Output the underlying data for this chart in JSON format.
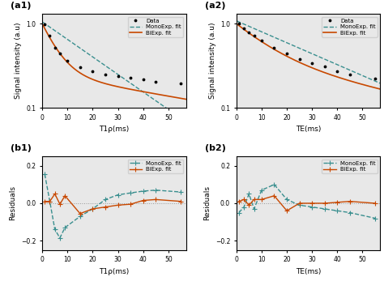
{
  "a1_xlabel": "T1ρ(ms)",
  "a1_ylabel": "Signal intensity (a.u)",
  "a1_data_x": [
    1,
    3,
    5,
    7,
    10,
    15,
    20,
    25,
    30,
    35,
    40,
    45,
    55
  ],
  "a1_data_y": [
    0.98,
    0.72,
    0.52,
    0.44,
    0.36,
    0.3,
    0.27,
    0.25,
    0.235,
    0.225,
    0.215,
    0.205,
    0.195
  ],
  "a1_mono_params": [
    1.05,
    0.048
  ],
  "a1_bi_params": [
    0.75,
    0.18,
    0.25,
    0.012
  ],
  "a2_xlabel": "TE(ms)",
  "a2_ylabel": "Signal intensity (a.u)",
  "a2_data_x": [
    1,
    3,
    5,
    7,
    10,
    15,
    20,
    25,
    30,
    35,
    40,
    45,
    55
  ],
  "a2_data_y": [
    1.0,
    0.88,
    0.78,
    0.72,
    0.63,
    0.52,
    0.44,
    0.38,
    0.34,
    0.31,
    0.27,
    0.25,
    0.22
  ],
  "a2_mono_params": [
    1.08,
    0.03
  ],
  "a2_bi_params": [
    0.65,
    0.075,
    0.35,
    0.014
  ],
  "b1_xlabel": "T1ρ(ms)",
  "b1_ylabel": "Residuals",
  "b1_mono_res_x": [
    1,
    3,
    5,
    7,
    9,
    15,
    20,
    25,
    30,
    35,
    40,
    45,
    55
  ],
  "b1_mono_res_y": [
    0.155,
    0.01,
    -0.14,
    -0.185,
    -0.13,
    -0.07,
    -0.03,
    0.02,
    0.045,
    0.055,
    0.065,
    0.07,
    0.06
  ],
  "b1_bi_res_x": [
    1,
    3,
    5,
    7,
    9,
    15,
    20,
    25,
    30,
    35,
    40,
    45,
    55
  ],
  "b1_bi_res_y": [
    0.01,
    0.01,
    0.05,
    -0.005,
    0.04,
    -0.055,
    -0.03,
    -0.02,
    -0.01,
    -0.005,
    0.015,
    0.02,
    0.01
  ],
  "b2_xlabel": "TE(ms)",
  "b2_ylabel": "Residuals",
  "b2_mono_res_x": [
    1,
    3,
    5,
    7,
    10,
    15,
    20,
    25,
    30,
    35,
    40,
    45,
    55
  ],
  "b2_mono_res_y": [
    -0.05,
    -0.02,
    0.05,
    -0.03,
    0.07,
    0.1,
    0.02,
    -0.01,
    -0.02,
    -0.03,
    -0.04,
    -0.05,
    -0.08
  ],
  "b2_bi_res_x": [
    1,
    3,
    5,
    7,
    10,
    15,
    20,
    25,
    30,
    35,
    40,
    45,
    55
  ],
  "b2_bi_res_y": [
    0.01,
    0.02,
    -0.01,
    0.02,
    0.02,
    0.04,
    -0.04,
    0.0,
    0.0,
    0.0,
    0.005,
    0.01,
    0.0
  ],
  "mono_color": "#3a8f8f",
  "bi_color": "#c84800",
  "data_color": "black",
  "zero_line_color": "#999999",
  "ylim_signal": [
    0.1,
    1.3
  ],
  "ylim_residuals": [
    -0.25,
    0.25
  ],
  "xlim": [
    0,
    57
  ],
  "bg_color": "#e8e8e8"
}
